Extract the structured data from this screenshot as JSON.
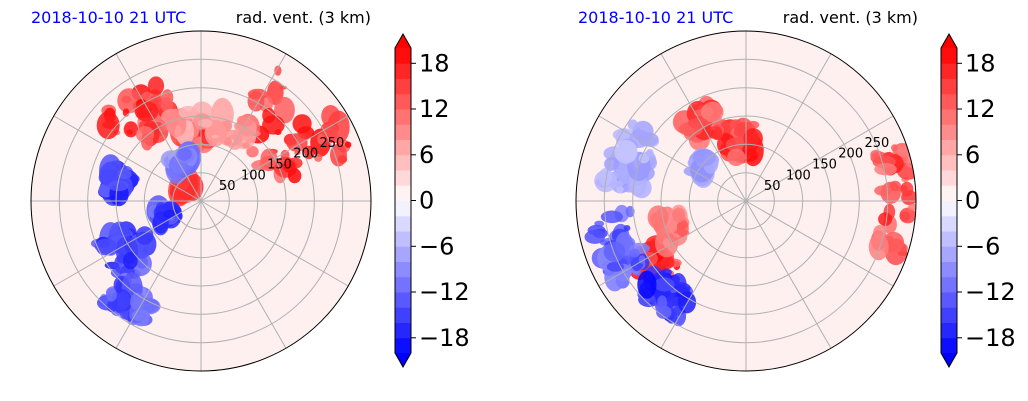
{
  "colors": {
    "timestamp": "#0000ff",
    "positive": "#ff0000",
    "negative": "#0000ff",
    "zero": "#ffffff",
    "grid": "#b0b0b0"
  },
  "chart_data": [
    {
      "type": "heatmap",
      "projection": "polar",
      "title_left": "2018-10-10 21 UTC",
      "title_right": "rad. vent. (3 km)",
      "radial_ticks": [
        "50",
        "100",
        "150",
        "200",
        "250"
      ],
      "radial_tick_values": [
        50,
        100,
        150,
        200,
        250
      ],
      "r_max": 300,
      "grid": true,
      "colorbar": {
        "ticks": [
          "18",
          "12",
          "6",
          "0",
          "−6",
          "−12",
          "−18"
        ],
        "tick_values": [
          18,
          12,
          6,
          0,
          -6,
          -12,
          -18
        ],
        "range": [
          -20,
          20
        ],
        "extend": "both",
        "colormap": "bwr"
      },
      "features": [
        {
          "kind": "positive",
          "r": 200,
          "theta": 40,
          "dr": 160,
          "dtheta": 50,
          "v": 1.0
        },
        {
          "kind": "positive",
          "r": 185,
          "theta": 125,
          "dr": 90,
          "dtheta": 35,
          "v": 1.0
        },
        {
          "kind": "positive",
          "r": 120,
          "theta": 95,
          "dr": 40,
          "dtheta": 25,
          "v": 0.9
        },
        {
          "kind": "positive",
          "r": 40,
          "theta": 140,
          "dr": 25,
          "dtheta": 40,
          "v": 0.9
        },
        {
          "kind": "positive",
          "r": 140,
          "theta": 80,
          "dr": 50,
          "dtheta": 60,
          "v": 0.5
        },
        {
          "kind": "negative",
          "r": 150,
          "theta": 168,
          "dr": 40,
          "dtheta": 15,
          "v": 1.0
        },
        {
          "kind": "negative",
          "r": 155,
          "theta": 215,
          "dr": 80,
          "dtheta": 25,
          "v": 1.0
        },
        {
          "kind": "negative",
          "r": 70,
          "theta": 200,
          "dr": 30,
          "dtheta": 20,
          "v": 0.9
        },
        {
          "kind": "negative",
          "r": 220,
          "theta": 235,
          "dr": 50,
          "dtheta": 20,
          "v": 0.8
        },
        {
          "kind": "negative",
          "r": 80,
          "theta": 115,
          "dr": 20,
          "dtheta": 25,
          "v": 0.6
        }
      ]
    },
    {
      "type": "heatmap",
      "projection": "polar",
      "title_left": "2018-10-10 21 UTC",
      "title_right": "rad. vent. (3 km)",
      "radial_ticks": [
        "50",
        "100",
        "150",
        "200",
        "250"
      ],
      "radial_tick_values": [
        50,
        100,
        150,
        200,
        250
      ],
      "r_max": 300,
      "grid": true,
      "colorbar": {
        "ticks": [
          "18",
          "12",
          "6",
          "0",
          "−6",
          "−12",
          "−18"
        ],
        "tick_values": [
          18,
          12,
          6,
          0,
          -6,
          -12,
          -18
        ],
        "range": [
          -20,
          20
        ],
        "extend": "both",
        "colormap": "bwr"
      },
      "features": [
        {
          "kind": "positive",
          "r": 270,
          "theta": 0,
          "dr": 60,
          "dtheta": 40,
          "v": 0.9
        },
        {
          "kind": "positive",
          "r": 105,
          "theta": 95,
          "dr": 60,
          "dtheta": 30,
          "v": 1.0
        },
        {
          "kind": "positive",
          "r": 155,
          "theta": 120,
          "dr": 50,
          "dtheta": 20,
          "v": 0.9
        },
        {
          "kind": "positive",
          "r": 195,
          "theta": 215,
          "dr": 60,
          "dtheta": 20,
          "v": 1.0
        },
        {
          "kind": "positive",
          "r": 140,
          "theta": 200,
          "dr": 40,
          "dtheta": 20,
          "v": 0.7
        },
        {
          "kind": "negative",
          "r": 240,
          "theta": 200,
          "dr": 70,
          "dtheta": 30,
          "v": 0.8
        },
        {
          "kind": "negative",
          "r": 215,
          "theta": 230,
          "dr": 60,
          "dtheta": 20,
          "v": 1.0
        },
        {
          "kind": "negative",
          "r": 220,
          "theta": 160,
          "dr": 70,
          "dtheta": 30,
          "v": 0.4
        },
        {
          "kind": "negative",
          "r": 100,
          "theta": 140,
          "dr": 20,
          "dtheta": 20,
          "v": 0.5
        }
      ]
    }
  ]
}
